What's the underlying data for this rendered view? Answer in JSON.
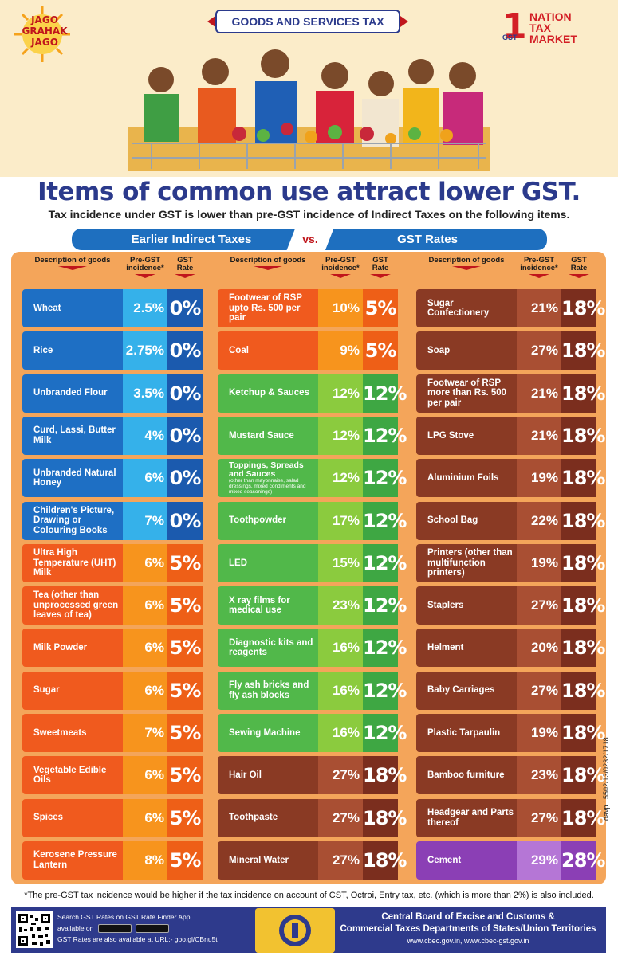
{
  "header": {
    "jago_grahak_jago": [
      "JAGO",
      "GRAHAK",
      "JAGO"
    ],
    "banner": "GOODS AND SERVICES TAX",
    "ontm_one": "1",
    "ontm_lines": [
      "NATION",
      "TAX",
      "MARKET"
    ],
    "ontm_gst": "GST"
  },
  "title": "Items of common use attract lower GST.",
  "subtitle": "Tax incidence under GST is lower than pre-GST incidence of Indirect Taxes on the following items.",
  "vs_bar": {
    "left": "Earlier Indirect Taxes",
    "vs": "vs.",
    "right": "GST Rates"
  },
  "column_headers": {
    "description": "Description of goods",
    "pre": "Pre-GST incidence*",
    "rate": "GST Rate"
  },
  "columns": [
    [
      {
        "desc": "Wheat",
        "pre": "2.5%",
        "rate": "0%",
        "color": "blue"
      },
      {
        "desc": "Rice",
        "pre": "2.75%",
        "rate": "0%",
        "color": "blue"
      },
      {
        "desc": "Unbranded Flour",
        "pre": "3.5%",
        "rate": "0%",
        "color": "blue"
      },
      {
        "desc": "Curd, Lassi, Butter Milk",
        "pre": "4%",
        "rate": "0%",
        "color": "blue"
      },
      {
        "desc": "Unbranded Natural Honey",
        "pre": "6%",
        "rate": "0%",
        "color": "blue"
      },
      {
        "desc": "Children's Picture, Drawing or Colouring Books",
        "pre": "7%",
        "rate": "0%",
        "color": "blue"
      },
      {
        "desc": "Ultra High Temperature (UHT) Milk",
        "pre": "6%",
        "rate": "5%",
        "color": "orange"
      },
      {
        "desc": "Tea (other than unprocessed green leaves of tea)",
        "pre": "6%",
        "rate": "5%",
        "color": "orange"
      },
      {
        "desc": "Milk Powder",
        "pre": "6%",
        "rate": "5%",
        "color": "orange"
      },
      {
        "desc": "Sugar",
        "pre": "6%",
        "rate": "5%",
        "color": "orange"
      },
      {
        "desc": "Sweetmeats",
        "pre": "7%",
        "rate": "5%",
        "color": "orange"
      },
      {
        "desc": "Vegetable Edible Oils",
        "pre": "6%",
        "rate": "5%",
        "color": "orange"
      },
      {
        "desc": "Spices",
        "pre": "6%",
        "rate": "5%",
        "color": "orange"
      },
      {
        "desc": "Kerosene Pressure Lantern",
        "pre": "8%",
        "rate": "5%",
        "color": "orange"
      }
    ],
    [
      {
        "desc": "Footwear of RSP upto Rs. 500 per pair",
        "pre": "10%",
        "rate": "5%",
        "color": "orange"
      },
      {
        "desc": "Coal",
        "pre": "9%",
        "rate": "5%",
        "color": "orange"
      },
      {
        "desc": "Ketchup & Sauces",
        "pre": "12%",
        "rate": "12%",
        "color": "green"
      },
      {
        "desc": "Mustard Sauce",
        "pre": "12%",
        "rate": "12%",
        "color": "green"
      },
      {
        "desc": "Toppings, Spreads and Sauces",
        "fine": "(other than mayonnaise, salad dressings, mixed condiments and mixed seasonings)",
        "pre": "12%",
        "rate": "12%",
        "color": "green"
      },
      {
        "desc": "Toothpowder",
        "pre": "17%",
        "rate": "12%",
        "color": "green"
      },
      {
        "desc": "LED",
        "pre": "15%",
        "rate": "12%",
        "color": "green"
      },
      {
        "desc": "X ray films for medical use",
        "pre": "23%",
        "rate": "12%",
        "color": "green"
      },
      {
        "desc": "Diagnostic kits and reagents",
        "pre": "16%",
        "rate": "12%",
        "color": "green"
      },
      {
        "desc": "Fly ash bricks and fly ash blocks",
        "pre": "16%",
        "rate": "12%",
        "color": "green"
      },
      {
        "desc": "Sewing Machine",
        "pre": "16%",
        "rate": "12%",
        "color": "green"
      },
      {
        "desc": "Hair Oil",
        "pre": "27%",
        "rate": "18%",
        "color": "brown"
      },
      {
        "desc": "Toothpaste",
        "pre": "27%",
        "rate": "18%",
        "color": "brown"
      },
      {
        "desc": "Mineral Water",
        "pre": "27%",
        "rate": "18%",
        "color": "brown"
      }
    ],
    [
      {
        "desc": "Sugar Confectionery",
        "pre": "21%",
        "rate": "18%",
        "color": "brown"
      },
      {
        "desc": "Soap",
        "pre": "27%",
        "rate": "18%",
        "color": "brown"
      },
      {
        "desc": "Footwear of RSP more than Rs. 500 per pair",
        "pre": "21%",
        "rate": "18%",
        "color": "brown"
      },
      {
        "desc": "LPG Stove",
        "pre": "21%",
        "rate": "18%",
        "color": "brown"
      },
      {
        "desc": "Aluminium Foils",
        "pre": "19%",
        "rate": "18%",
        "color": "brown"
      },
      {
        "desc": "School Bag",
        "pre": "22%",
        "rate": "18%",
        "color": "brown"
      },
      {
        "desc": "Printers (other than multifunction printers)",
        "pre": "19%",
        "rate": "18%",
        "color": "brown"
      },
      {
        "desc": "Staplers",
        "pre": "27%",
        "rate": "18%",
        "color": "brown"
      },
      {
        "desc": "Helment",
        "pre": "20%",
        "rate": "18%",
        "color": "brown"
      },
      {
        "desc": "Baby Carriages",
        "pre": "27%",
        "rate": "18%",
        "color": "brown"
      },
      {
        "desc": "Plastic Tarpaulin",
        "pre": "19%",
        "rate": "18%",
        "color": "brown"
      },
      {
        "desc": "Bamboo furniture",
        "pre": "23%",
        "rate": "18%",
        "color": "brown"
      },
      {
        "desc": "Headgear and Parts thereof",
        "pre": "27%",
        "rate": "18%",
        "color": "brown"
      },
      {
        "desc": "Cement",
        "pre": "29%",
        "rate": "28%",
        "color": "purple"
      }
    ]
  ],
  "davp": "davp 15502/13/0232/1718",
  "footnote": "*The pre-GST tax incidence would be higher if the tax incidence on account of CST, Octroi, Entry tax, etc. (which is more than 2%) is also included.",
  "footer": {
    "app_line": "Search GST Rates on  GST Rate Finder App",
    "available_on": "available on",
    "url_line": "GST Rates are also available at URL:- goo.gl/CBnu5t",
    "org_line1": "Central Board of Excise and Customs &",
    "org_line2": "Commercial Taxes Departments of States/Union Territories",
    "websites": "www.cbec.gov.in, www.cbec-gst.gov.in"
  }
}
